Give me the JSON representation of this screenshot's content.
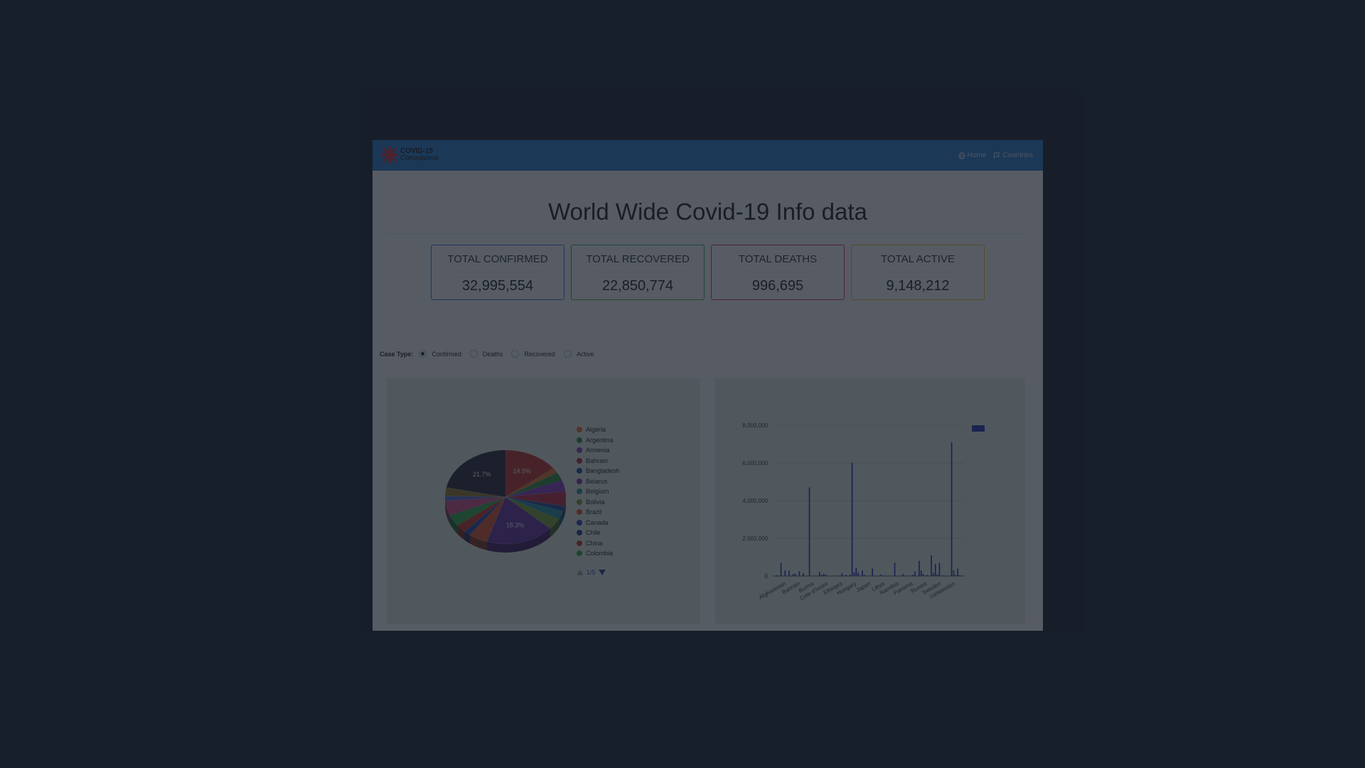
{
  "brand": {
    "title": "COVID-19",
    "subtitle": "Coronavirus"
  },
  "nav": {
    "home": "Home",
    "countries": "Countries"
  },
  "page_title": "World Wide Covid-19 Info data",
  "stats": [
    {
      "label": "TOTAL CONFIRMED",
      "value": "32,995,554",
      "color": "#2f7fd6"
    },
    {
      "label": "TOTAL RECOVERED",
      "value": "22,850,774",
      "color": "#3aa651"
    },
    {
      "label": "TOTAL DEATHS",
      "value": "996,695",
      "color": "#e0354a"
    },
    {
      "label": "TOTAL ACTIVE",
      "value": "9,148,212",
      "color": "#f2c12e"
    }
  ],
  "case_type": {
    "label": "Case Type:",
    "options": [
      "Confirmed",
      "Deaths",
      "Recovered",
      "Active"
    ],
    "selected": "Confirmed"
  },
  "pie_legend": {
    "items": [
      {
        "name": "Algeria",
        "color": "#e8732e"
      },
      {
        "name": "Argentina",
        "color": "#2f8f3b"
      },
      {
        "name": "Armenia",
        "color": "#8b3fc4"
      },
      {
        "name": "Bahrain",
        "color": "#c02a42"
      },
      {
        "name": "Bangladesh",
        "color": "#1f4d9a"
      },
      {
        "name": "Belarus",
        "color": "#7a3aa8"
      },
      {
        "name": "Belgium",
        "color": "#2490a0"
      },
      {
        "name": "Bolivia",
        "color": "#7fa033"
      },
      {
        "name": "Brazil",
        "color": "#e1542d"
      },
      {
        "name": "Canada",
        "color": "#2746b3"
      },
      {
        "name": "Chile",
        "color": "#1f3c8f"
      },
      {
        "name": "China",
        "color": "#c9352a"
      },
      {
        "name": "Colombia",
        "color": "#2fae4c"
      }
    ],
    "pager": "1/5"
  },
  "chart_data": [
    {
      "type": "pie",
      "slices": [
        {
          "label": "21.7%",
          "value": 21.7,
          "color": "#2a2a38"
        },
        {
          "label": "14.5%",
          "value": 14.5,
          "color": "#c7352d"
        },
        {
          "label": "18.3%",
          "value": 18.3,
          "color": "#6a2fa0"
        }
      ],
      "other_percent": 45.5
    },
    {
      "type": "bar",
      "ylim": [
        0,
        8000000
      ],
      "yticks": [
        "8,000,000",
        "6,000,000",
        "4,000,000",
        "2,000,000",
        "0"
      ],
      "ytick_values": [
        8000000,
        6000000,
        4000000,
        2000000,
        0
      ],
      "xticks": [
        "Afghanistan",
        "Bahrain",
        "Burma",
        "Cote d'Ivoire",
        "Ethiopia",
        "Hungary",
        "Japan",
        "Libya",
        "Namibia",
        "Panama",
        "Russia",
        "Sweden",
        "Uzbekistan"
      ],
      "values": [
        35000,
        2000,
        700000,
        300,
        300000,
        1000,
        280000,
        2000,
        100000,
        130000,
        15000,
        250000,
        8000,
        150000,
        4000,
        13000,
        4700000,
        6000,
        25000,
        1000,
        9000,
        220000,
        55000,
        110000,
        90000,
        12000,
        500,
        18000,
        8000,
        1000,
        3000,
        40000,
        140000,
        12000,
        60000,
        9000,
        70000,
        6000000,
        200000,
        450000,
        180000,
        3000,
        300000,
        70000,
        8000,
        12000,
        1500,
        400000,
        200,
        1000,
        3500,
        78000,
        25000,
        5000,
        200,
        11000,
        7000,
        1000,
        700000,
        1000,
        500,
        4000,
        112000,
        30000,
        14000,
        1000,
        5000,
        75000,
        240000,
        1000,
        800000,
        300000,
        110000,
        15000,
        60000,
        10000,
        1100000,
        160000,
        650000,
        90000,
        700000,
        25000,
        30000,
        300,
        15000,
        2000,
        7100000,
        300000,
        50000,
        400000,
        50000
      ]
    }
  ]
}
